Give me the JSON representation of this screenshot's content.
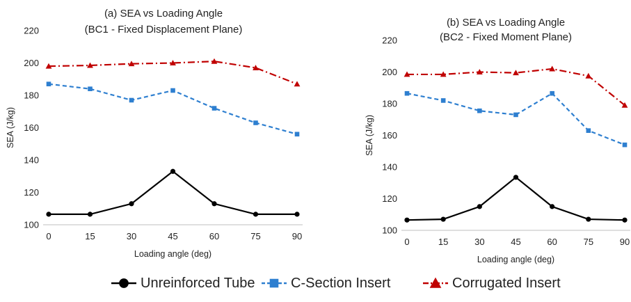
{
  "chart_data": [
    {
      "type": "line",
      "title": "(a)  SEA vs Loading Angle",
      "subtitle": "(BC1 - Fixed Displacement Plane)",
      "xlabel": "Loading angle (deg)",
      "ylabel": "SEA (J/kg)",
      "x": [
        0,
        15,
        30,
        45,
        60,
        75,
        90
      ],
      "ylim": [
        100,
        220
      ],
      "yticks": [
        100,
        120,
        140,
        160,
        180,
        200,
        220
      ],
      "grid": false,
      "series": [
        {
          "name": "Unreinforced Tube",
          "values": [
            106.5,
            106.5,
            113,
            133,
            113,
            106.5,
            106.5
          ]
        },
        {
          "name": "C-Section Insert",
          "values": [
            187,
            184,
            177,
            183,
            172,
            163,
            156
          ]
        },
        {
          "name": "Corrugated Insert",
          "values": [
            198,
            198.5,
            199.5,
            200,
            201,
            197,
            187
          ]
        }
      ]
    },
    {
      "type": "line",
      "title": "(b)  SEA vs Loading Angle",
      "subtitle": "(BC2 - Fixed Moment Plane)",
      "xlabel": "Loading angle (deg)",
      "ylabel": "SEA (J/kg)",
      "x": [
        0,
        15,
        30,
        45,
        60,
        75,
        90
      ],
      "ylim": [
        100,
        220
      ],
      "yticks": [
        100,
        120,
        140,
        160,
        180,
        200,
        220
      ],
      "grid": false,
      "series": [
        {
          "name": "Unreinforced Tube",
          "values": [
            106.5,
            107,
            115,
            133.5,
            115,
            107,
            106.5
          ]
        },
        {
          "name": "C-Section Insert",
          "values": [
            186.5,
            182,
            175.5,
            173,
            186.5,
            163,
            154
          ]
        },
        {
          "name": "Corrugated Insert",
          "values": [
            198.5,
            198.5,
            200,
            199.5,
            202,
            197.5,
            179
          ]
        }
      ]
    }
  ],
  "legend": {
    "position": "bottom",
    "items": [
      {
        "label": "Unreinforced Tube",
        "color": "#000000",
        "marker": "circle",
        "dash": "solid"
      },
      {
        "label": "C-Section Insert",
        "color": "#2e7fd0",
        "marker": "square",
        "dash": "dash"
      },
      {
        "label": "Corrugated Insert",
        "color": "#c00000",
        "marker": "triangle",
        "dash": "dashdot"
      }
    ]
  }
}
